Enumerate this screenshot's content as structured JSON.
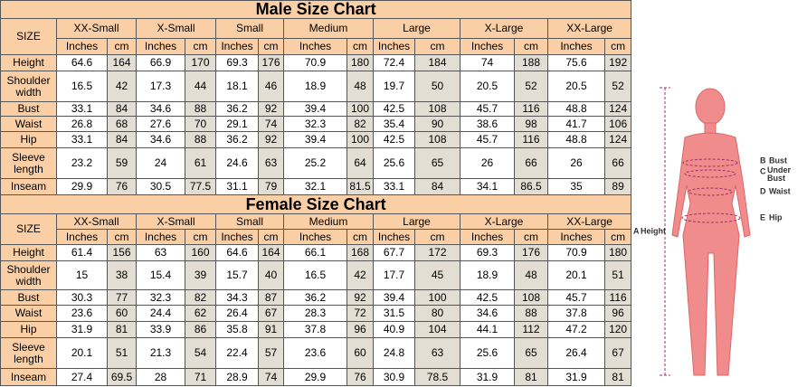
{
  "male": {
    "title": "Male Size Chart",
    "size_label": "SIZE",
    "sizes": [
      "XX-Small",
      "X-Small",
      "Small",
      "Medium",
      "Large",
      "X-Large",
      "XX-Large"
    ],
    "units": [
      "Inches",
      "cm"
    ],
    "rows": [
      {
        "label": "Height",
        "values": [
          64.6,
          164,
          66.9,
          170,
          69.3,
          176,
          70.9,
          180,
          72.4,
          184,
          74,
          188,
          75.6,
          192
        ]
      },
      {
        "label": "Shoulder width",
        "values": [
          16.5,
          42,
          17.3,
          44,
          18.1,
          46,
          18.9,
          48,
          19.7,
          50,
          20.5,
          52,
          20.5,
          52
        ]
      },
      {
        "label": "Bust",
        "values": [
          33.1,
          84,
          34.6,
          88,
          36.2,
          92,
          39.4,
          100,
          42.5,
          108,
          45.7,
          116,
          48.8,
          124
        ]
      },
      {
        "label": "Waist",
        "values": [
          26.8,
          68,
          27.6,
          70,
          29.1,
          74,
          32.3,
          82,
          35.4,
          90,
          38.6,
          98,
          41.7,
          106
        ]
      },
      {
        "label": "Hip",
        "values": [
          33.1,
          84,
          34.6,
          88,
          36.2,
          92,
          39.4,
          100,
          42.5,
          108,
          45.7,
          116,
          48.8,
          124
        ]
      },
      {
        "label": "Sleeve length",
        "values": [
          23.2,
          59,
          24,
          61,
          24.6,
          63,
          25.2,
          64,
          25.6,
          65,
          26,
          66,
          26,
          66
        ]
      },
      {
        "label": "Inseam",
        "values": [
          29.9,
          76,
          30.5,
          77.5,
          31.1,
          79,
          32.1,
          81.5,
          33.1,
          84,
          34.1,
          86.5,
          35,
          89
        ]
      }
    ]
  },
  "female": {
    "title": "Female Size Chart",
    "size_label": "SIZE",
    "sizes": [
      "XX-Small",
      "X-Small",
      "Small",
      "Medium",
      "Large",
      "X-Large",
      "XX-Large"
    ],
    "units": [
      "Inches",
      "cm"
    ],
    "rows": [
      {
        "label": "Height",
        "values": [
          61.4,
          156,
          63,
          160,
          64.6,
          164,
          66.1,
          168,
          67.7,
          172,
          69.3,
          176,
          70.9,
          180
        ]
      },
      {
        "label": "Shoulder width",
        "values": [
          15,
          38,
          15.4,
          39,
          15.7,
          40,
          16.5,
          42,
          17.7,
          45,
          18.9,
          48,
          20.1,
          51
        ]
      },
      {
        "label": "Bust",
        "values": [
          30.3,
          77,
          32.3,
          82,
          34.3,
          87,
          36.2,
          92,
          39.4,
          100,
          42.5,
          108,
          45.7,
          116
        ]
      },
      {
        "label": "Waist",
        "values": [
          23.6,
          60,
          24.4,
          62,
          26.4,
          67,
          28.3,
          72,
          31.5,
          80,
          34.6,
          88,
          37.8,
          96
        ]
      },
      {
        "label": "Hip",
        "values": [
          31.9,
          81,
          33.9,
          86,
          35.8,
          91,
          37.8,
          96,
          40.9,
          104,
          44.1,
          112,
          47.2,
          120
        ]
      },
      {
        "label": "Sleeve length",
        "values": [
          20.1,
          51,
          21.3,
          54,
          22.4,
          57,
          23.6,
          60,
          24.8,
          63,
          25.6,
          65,
          26.4,
          67
        ]
      },
      {
        "label": "Inseam",
        "values": [
          27.4,
          69.5,
          28,
          71,
          28.9,
          74,
          29.9,
          76,
          30.9,
          78.5,
          31.9,
          81,
          31.9,
          81
        ]
      }
    ]
  },
  "figure": {
    "labels": [
      {
        "letter": "A",
        "text": "Height"
      },
      {
        "letter": "B",
        "text": "Bust"
      },
      {
        "letter": "C",
        "text": "Under Bust"
      },
      {
        "letter": "D",
        "text": "Waist"
      },
      {
        "letter": "E",
        "text": "Hip"
      }
    ]
  }
}
